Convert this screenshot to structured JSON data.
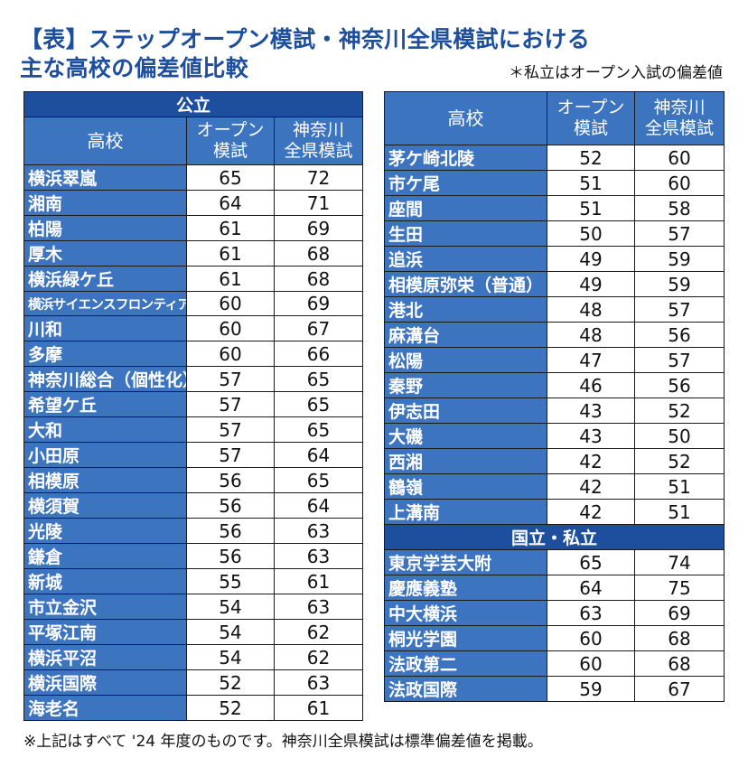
{
  "title": {
    "line1": "【表】ステップオープン模試・神奈川全県模試における",
    "line2": "主な高校の偏差値比較"
  },
  "private_note": "＊私立はオープン入試の偏差値",
  "headers": {
    "school": "高校",
    "open_line1": "オープン",
    "open_line2": "模試",
    "kanagawa_line1": "神奈川",
    "kanagawa_line2": "全県模試"
  },
  "public_section": {
    "label": "公立",
    "rows": [
      {
        "name": "横浜翠嵐",
        "open": "65",
        "kanagawa": "72"
      },
      {
        "name": "湘南",
        "open": "64",
        "kanagawa": "71"
      },
      {
        "name": "柏陽",
        "open": "61",
        "kanagawa": "69"
      },
      {
        "name": "厚木",
        "open": "61",
        "kanagawa": "68"
      },
      {
        "name": "横浜緑ケ丘",
        "open": "61",
        "kanagawa": "68"
      },
      {
        "name": "横浜サイエンスフロンティア",
        "open": "60",
        "kanagawa": "69"
      },
      {
        "name": "川和",
        "open": "60",
        "kanagawa": "67"
      },
      {
        "name": "多摩",
        "open": "60",
        "kanagawa": "66"
      },
      {
        "name": "神奈川総合（個性化）",
        "open": "57",
        "kanagawa": "65"
      },
      {
        "name": "希望ケ丘",
        "open": "57",
        "kanagawa": "65"
      },
      {
        "name": "大和",
        "open": "57",
        "kanagawa": "65"
      },
      {
        "name": "小田原",
        "open": "57",
        "kanagawa": "64"
      },
      {
        "name": "相模原",
        "open": "56",
        "kanagawa": "65"
      },
      {
        "name": "横須賀",
        "open": "56",
        "kanagawa": "64"
      },
      {
        "name": "光陵",
        "open": "56",
        "kanagawa": "63"
      },
      {
        "name": "鎌倉",
        "open": "56",
        "kanagawa": "63"
      },
      {
        "name": "新城",
        "open": "55",
        "kanagawa": "61"
      },
      {
        "name": "市立金沢",
        "open": "54",
        "kanagawa": "63"
      },
      {
        "name": "平塚江南",
        "open": "54",
        "kanagawa": "62"
      },
      {
        "name": "横浜平沼",
        "open": "54",
        "kanagawa": "62"
      },
      {
        "name": "横浜国際",
        "open": "52",
        "kanagawa": "63"
      },
      {
        "name": "海老名",
        "open": "52",
        "kanagawa": "61"
      }
    ],
    "continued_rows": [
      {
        "name": "茅ケ崎北陵",
        "open": "52",
        "kanagawa": "60"
      },
      {
        "name": "市ケ尾",
        "open": "51",
        "kanagawa": "60"
      },
      {
        "name": "座間",
        "open": "51",
        "kanagawa": "58"
      },
      {
        "name": "生田",
        "open": "50",
        "kanagawa": "57"
      },
      {
        "name": "追浜",
        "open": "49",
        "kanagawa": "59"
      },
      {
        "name": "相模原弥栄（普通）",
        "open": "49",
        "kanagawa": "59"
      },
      {
        "name": "港北",
        "open": "48",
        "kanagawa": "57"
      },
      {
        "name": "麻溝台",
        "open": "48",
        "kanagawa": "56"
      },
      {
        "name": "松陽",
        "open": "47",
        "kanagawa": "57"
      },
      {
        "name": "秦野",
        "open": "46",
        "kanagawa": "56"
      },
      {
        "name": "伊志田",
        "open": "43",
        "kanagawa": "52"
      },
      {
        "name": "大磯",
        "open": "43",
        "kanagawa": "50"
      },
      {
        "name": "西湘",
        "open": "42",
        "kanagawa": "52"
      },
      {
        "name": "鶴嶺",
        "open": "42",
        "kanagawa": "51"
      },
      {
        "name": "上溝南",
        "open": "42",
        "kanagawa": "51"
      }
    ]
  },
  "national_private_section": {
    "label": "国立・私立",
    "rows": [
      {
        "name": "東京学芸大附",
        "open": "65",
        "kanagawa": "74"
      },
      {
        "name": "慶應義塾",
        "open": "64",
        "kanagawa": "75"
      },
      {
        "name": "中大横浜",
        "open": "63",
        "kanagawa": "69"
      },
      {
        "name": "桐光学園",
        "open": "60",
        "kanagawa": "68"
      },
      {
        "name": "法政第二",
        "open": "60",
        "kanagawa": "68"
      },
      {
        "name": "法政国際",
        "open": "59",
        "kanagawa": "67"
      }
    ]
  },
  "footnote": "※上記はすべて '24 年度のものです。神奈川全県模試は標準偏差値を掲載。"
}
